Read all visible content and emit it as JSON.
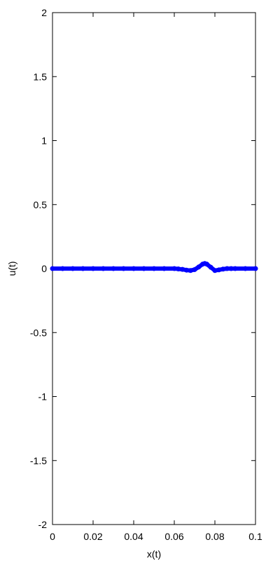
{
  "chart_data": {
    "type": "scatter",
    "title": "",
    "xlabel": "x(t)",
    "ylabel": "u(t)",
    "xlim": [
      0,
      0.1
    ],
    "ylim": [
      -2,
      2
    ],
    "x_ticks": [
      "0",
      "0.02",
      "0.04",
      "0.06",
      "0.08",
      "0.1"
    ],
    "y_ticks": [
      "2",
      "1.5",
      "1",
      "0.5",
      "0",
      "-0.5",
      "-1",
      "-1.5",
      "-2"
    ],
    "grid": false,
    "legend": "none",
    "marker": "filled-circle",
    "series": [
      {
        "color": "#0000ff",
        "x": [
          0,
          0.005,
          0.01,
          0.015,
          0.02,
          0.025,
          0.03,
          0.035,
          0.04,
          0.045,
          0.05,
          0.055,
          0.06,
          0.062,
          0.064,
          0.066,
          0.068,
          0.07,
          0.072,
          0.074,
          0.075,
          0.076,
          0.078,
          0.08,
          0.082,
          0.084,
          0.086,
          0.088,
          0.09,
          0.095,
          0.1
        ],
        "y": [
          0,
          0,
          0,
          0,
          0,
          0,
          0,
          0,
          0,
          0,
          0,
          0,
          0,
          -0.003,
          -0.006,
          -0.012,
          -0.015,
          -0.008,
          0.012,
          0.035,
          0.04,
          0.035,
          0.01,
          -0.015,
          -0.01,
          -0.004,
          0.0,
          0.0,
          0,
          0,
          0
        ]
      }
    ]
  }
}
